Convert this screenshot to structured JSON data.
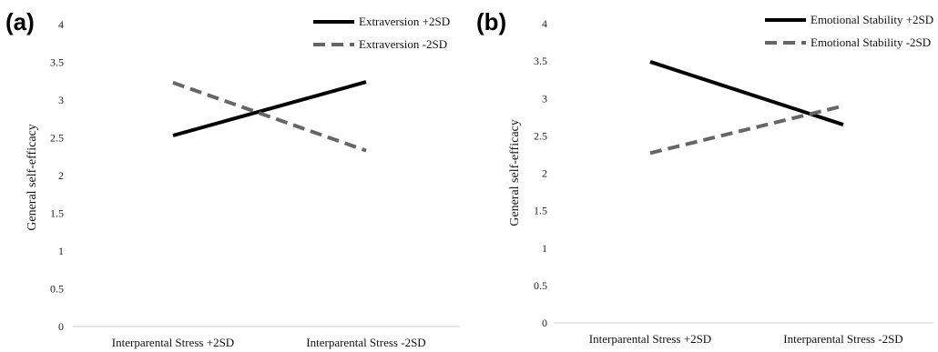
{
  "chart_data": [
    {
      "type": "line",
      "panel_label": "(a)",
      "categories": [
        "Interparental Stress +2SD",
        "Interparental Stress -2SD"
      ],
      "ylabel": "General self-efficacy",
      "ylim": [
        0,
        4
      ],
      "yticks": [
        "0",
        "0.5",
        "1",
        "1.5",
        "2",
        "2.5",
        "3",
        "3.5",
        "4"
      ],
      "legend_position": "top-right",
      "grid": false,
      "series": [
        {
          "name": "Extraversion +2SD",
          "values": [
            2.53,
            3.24
          ],
          "color": "#000000",
          "dash": "solid"
        },
        {
          "name": "Extraversion -2SD",
          "values": [
            3.23,
            2.33
          ],
          "color": "#666666",
          "dash": "dashed"
        }
      ]
    },
    {
      "type": "line",
      "panel_label": "(b)",
      "categories": [
        "Interparental Stress +2SD",
        "Interparental Stress -2SD"
      ],
      "ylabel": "General self-efficacy",
      "ylim": [
        0,
        4
      ],
      "yticks": [
        "0",
        "0.5",
        "1",
        "1.5",
        "2",
        "2.5",
        "3",
        "3.5",
        "4"
      ],
      "legend_position": "top-right",
      "grid": false,
      "series": [
        {
          "name": "Emotional Stability +2SD",
          "values": [
            3.49,
            2.65
          ],
          "color": "#000000",
          "dash": "solid"
        },
        {
          "name": "Emotional Stability -2SD",
          "values": [
            2.27,
            2.9
          ],
          "color": "#666666",
          "dash": "dashed"
        }
      ]
    }
  ]
}
